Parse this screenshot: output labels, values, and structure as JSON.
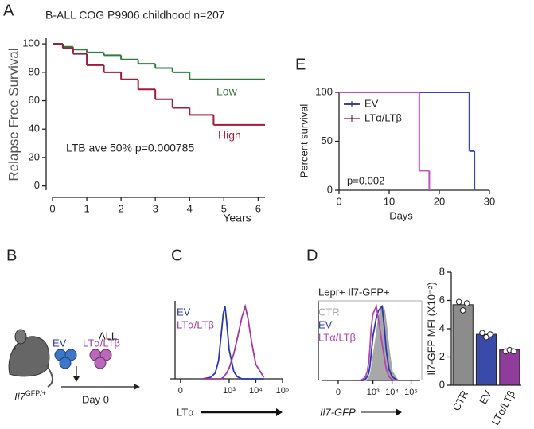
{
  "chart_data": [
    {
      "panel": "A",
      "type": "line",
      "step": true,
      "title": "B-ALL COG P9906 childhood n=207",
      "ylabel": "Relapse Free Survival",
      "xlabel": "Years",
      "annotation": "LTB ave 50% p=0.000785",
      "legend": "inline",
      "x": [
        0,
        0.3,
        0.6,
        1,
        1.5,
        2,
        2.5,
        3,
        3.5,
        4,
        4.7,
        6.2
      ],
      "series": [
        {
          "name": "Low",
          "color": "#2e7d3a",
          "values": [
            100,
            98,
            96,
            94,
            92,
            89,
            86,
            83,
            80,
            75,
            75,
            75
          ]
        },
        {
          "name": "High",
          "color": "#9b1d3c",
          "values": [
            100,
            97,
            93,
            85,
            80,
            75,
            68,
            61,
            55,
            50,
            43,
            43
          ]
        }
      ],
      "xlim": [
        0,
        6.2
      ],
      "xticks": [
        0,
        1,
        2,
        3,
        4,
        5,
        6
      ],
      "ylim": [
        -3,
        104
      ],
      "yticks": [
        0,
        20,
        40,
        60,
        80,
        100
      ]
    },
    {
      "panel": "E",
      "type": "line",
      "step": true,
      "ylabel": "Percent survival",
      "xlabel": "Days",
      "annotation": "p=0.002",
      "legend": "upper left",
      "x": [
        0,
        16,
        18,
        26,
        27
      ],
      "series": [
        {
          "name": "EV",
          "color": "#3346b0",
          "values": [
            100,
            100,
            100,
            40,
            0
          ]
        },
        {
          "name": "LTα/LTβ",
          "color": "#c04fc0",
          "values": [
            100,
            20,
            0,
            null,
            null
          ]
        }
      ],
      "xlim": [
        0,
        30
      ],
      "xticks": [
        0,
        10,
        20,
        30
      ],
      "ylim": [
        0,
        100
      ],
      "yticks": [
        0,
        50,
        100
      ]
    },
    {
      "panel": "C",
      "type": "density",
      "xscale": "asinh",
      "xlabel": "LTα",
      "legend": "upper left",
      "x": [
        100,
        200,
        300,
        400,
        500,
        600,
        700,
        800,
        1000,
        1500,
        2000,
        3000,
        4000,
        5000,
        7000,
        10000,
        20000
      ],
      "series": [
        {
          "name": "EV",
          "color": "#2a3aa8",
          "values": [
            0,
            2,
            8,
            25,
            60,
            90,
            100,
            80,
            40,
            10,
            3,
            0,
            0,
            0,
            0,
            0,
            0
          ]
        },
        {
          "name": "LTα/LTβ",
          "color": "#a03a9e",
          "values": [
            0,
            0,
            0,
            0,
            0,
            2,
            5,
            8,
            15,
            35,
            55,
            85,
            100,
            85,
            50,
            20,
            2
          ]
        }
      ],
      "xlim": [
        -30,
        100000
      ],
      "xticks": [
        0,
        {
          "value": 1000,
          "label": "10³"
        },
        {
          "value": 10000,
          "label": "10⁴"
        },
        {
          "value": 100000,
          "label": "10⁵"
        }
      ],
      "ylim": [
        0,
        100
      ]
    },
    {
      "panel": "D",
      "type": "density",
      "xscale": "asinh",
      "title": "Lepr+ Il7-GFP+",
      "xlabel": "Il7-GFP",
      "legend": "upper left",
      "x": [
        100,
        200,
        300,
        400,
        500,
        600,
        700,
        800,
        1000,
        1500,
        2000,
        3000,
        4000,
        5000,
        7000,
        10000,
        20000
      ],
      "series": [
        {
          "name": "CTR",
          "color": "#a8a8a8",
          "fill": true,
          "values": [
            0,
            0,
            0,
            0,
            1,
            3,
            6,
            12,
            30,
            60,
            85,
            100,
            95,
            75,
            40,
            12,
            0
          ]
        },
        {
          "name": "EV",
          "color": "#2a3aa8",
          "values": [
            0,
            0,
            0,
            2,
            5,
            10,
            20,
            35,
            60,
            85,
            95,
            100,
            70,
            40,
            15,
            5,
            0
          ]
        },
        {
          "name": "LTα/LTβ",
          "color": "#b048b0",
          "values": [
            0,
            0,
            2,
            5,
            12,
            25,
            45,
            70,
            90,
            100,
            80,
            50,
            30,
            15,
            5,
            1,
            0
          ]
        }
      ],
      "xlim": [
        -100,
        300000
      ],
      "xticks": [
        0,
        {
          "value": 1000,
          "label": "10³"
        },
        {
          "value": 10000,
          "label": "10⁴"
        },
        {
          "value": 100000,
          "label": "10⁵"
        }
      ],
      "ylim": [
        0,
        100
      ]
    },
    {
      "type": "bar",
      "ylabel": "Il7-GFP MFI (X10⁻²)",
      "categories": [
        "CTR",
        "EV",
        "LTα/LTβ"
      ],
      "values": [
        5.7,
        3.6,
        2.5
      ],
      "colors": [
        "#8c8c8c",
        "#3a4aa8",
        "#8f3c9c"
      ],
      "replicates": [
        [
          5.9,
          5.3,
          5.8
        ],
        [
          3.7,
          3.4,
          3.6
        ],
        [
          2.4,
          2.5,
          2.4
        ]
      ],
      "ylim": [
        0,
        8
      ],
      "yticks": [
        0,
        2,
        4,
        6,
        8
      ]
    }
  ],
  "diagram": {
    "panel": "B",
    "group": "ALL",
    "left_group": "EV",
    "right_group": "LTα/LTβ",
    "timepoint": "Day 0",
    "mouse_label": "Il7",
    "mouse_label_sup": "GFP/+"
  }
}
